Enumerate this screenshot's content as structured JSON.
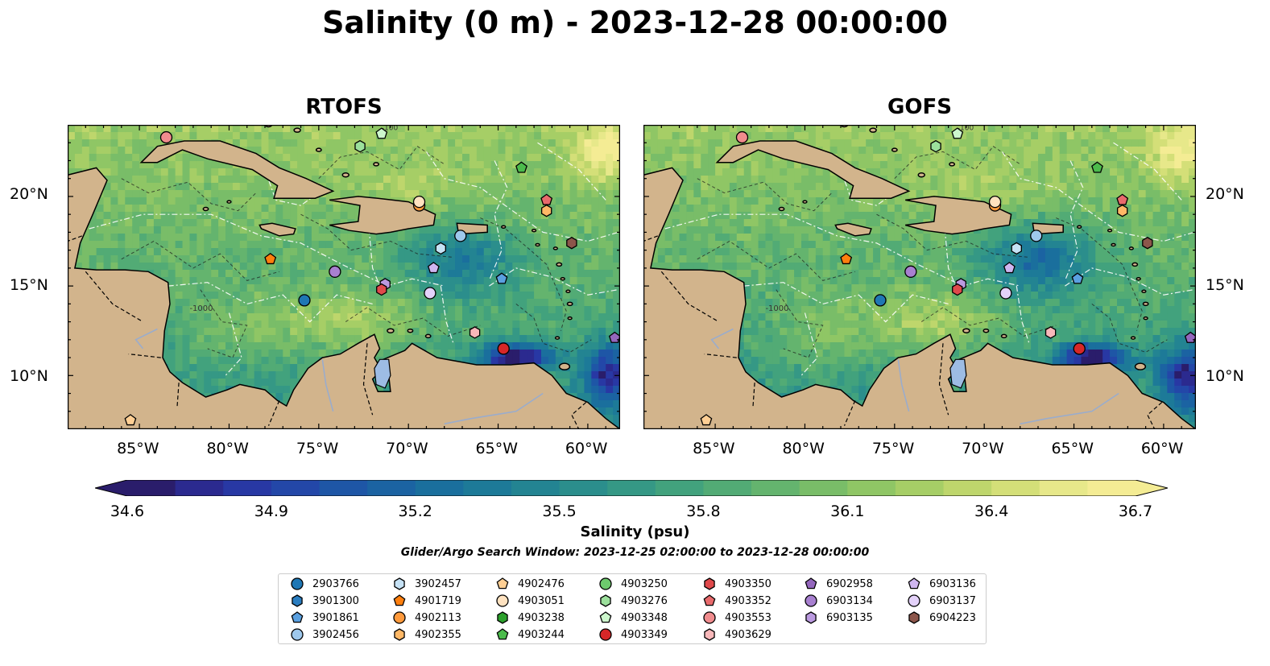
{
  "title": "Salinity (0 m) - 2023-12-28 00:00:00",
  "panels": [
    {
      "title": "RTOFS"
    },
    {
      "title": "GOFS"
    }
  ],
  "lon_ticks": [
    "85°W",
    "80°W",
    "75°W",
    "70°W",
    "65°W",
    "60°W"
  ],
  "lat_ticks": [
    "20°N",
    "15°N",
    "10°N"
  ],
  "colorbar": {
    "ticks": [
      "34.6",
      "34.9",
      "35.2",
      "35.5",
      "35.8",
      "36.1",
      "36.4",
      "36.7"
    ],
    "label": "Salinity (psu)",
    "colors": [
      "#2a1d6b",
      "#2b2a8f",
      "#2838a4",
      "#2347a8",
      "#1e56a6",
      "#1b63a2",
      "#1a6f9d",
      "#1d7a98",
      "#238492",
      "#2b8e8c",
      "#359885",
      "#42a27d",
      "#52ab75",
      "#64b46e",
      "#79bd68",
      "#8fc665",
      "#a6ce66",
      "#bed66c",
      "#d4df78",
      "#e7e88a",
      "#f4ec94"
    ]
  },
  "search_window": "Glider/Argo Search Window: 2023-12-25 02:00:00 to 2023-12-28 00:00:00",
  "contour_labels": {
    "shallow": "-100",
    "deep": "-1000"
  },
  "legend": {
    "columns": [
      [
        {
          "id": "2903766",
          "marker": "circle",
          "color": "#1f77b4"
        },
        {
          "id": "3901300",
          "marker": "hexagon",
          "color": "#2a7dc0"
        },
        {
          "id": "3901861",
          "marker": "pentagon",
          "color": "#5aa0e0"
        },
        {
          "id": "3902456",
          "marker": "circle",
          "color": "#9ec8ec"
        }
      ],
      [
        {
          "id": "3902457",
          "marker": "hexagon",
          "color": "#c6e2f5"
        },
        {
          "id": "4901719",
          "marker": "pentagon",
          "color": "#ff7f0e"
        },
        {
          "id": "4902113",
          "marker": "circle",
          "color": "#ff9a3c"
        },
        {
          "id": "4902355",
          "marker": "hexagon",
          "color": "#ffb866"
        }
      ],
      [
        {
          "id": "4902476",
          "marker": "pentagon",
          "color": "#ffcf94"
        },
        {
          "id": "4903051",
          "marker": "circle",
          "color": "#ffe2c0"
        },
        {
          "id": "4903238",
          "marker": "hexagon",
          "color": "#2ca02c"
        },
        {
          "id": "4903244",
          "marker": "pentagon",
          "color": "#4cbb4c"
        }
      ],
      [
        {
          "id": "4903250",
          "marker": "circle",
          "color": "#6dc96d"
        },
        {
          "id": "4903276",
          "marker": "hexagon",
          "color": "#9ce09c"
        },
        {
          "id": "4903348",
          "marker": "pentagon",
          "color": "#cdf7cd"
        },
        {
          "id": "4903349",
          "marker": "circle",
          "color": "#d62728"
        }
      ],
      [
        {
          "id": "4903350",
          "marker": "hexagon",
          "color": "#e0494b"
        },
        {
          "id": "4903352",
          "marker": "pentagon",
          "color": "#e86a6c"
        },
        {
          "id": "4903553",
          "marker": "circle",
          "color": "#f08c8e"
        },
        {
          "id": "4903629",
          "marker": "hexagon",
          "color": "#f8b8ba"
        }
      ],
      [
        {
          "id": "6902958",
          "marker": "pentagon",
          "color": "#9467bd"
        },
        {
          "id": "6903134",
          "marker": "circle",
          "color": "#a880d0"
        },
        {
          "id": "6903135",
          "marker": "hexagon",
          "color": "#bb9ae0"
        }
      ],
      [
        {
          "id": "6903136",
          "marker": "pentagon",
          "color": "#cfb6f0"
        },
        {
          "id": "6903137",
          "marker": "circle",
          "color": "#e4d2fa"
        },
        {
          "id": "6904223",
          "marker": "hexagon",
          "color": "#8c564b"
        }
      ]
    ]
  },
  "floats": [
    {
      "id": "4903553",
      "lon": -83.5,
      "lat": 23.3,
      "marker": "circle",
      "color": "#f08c8e"
    },
    {
      "id": "4903348",
      "lon": -71.5,
      "lat": 23.5,
      "marker": "pentagon",
      "color": "#cdf7cd"
    },
    {
      "id": "4903276",
      "lon": -72.7,
      "lat": 22.8,
      "marker": "hexagon",
      "color": "#9ce09c"
    },
    {
      "id": "4903244",
      "lon": -63.7,
      "lat": 21.6,
      "marker": "pentagon",
      "color": "#4cbb4c"
    },
    {
      "id": "4903352",
      "lon": -62.3,
      "lat": 19.8,
      "marker": "pentagon",
      "color": "#e86a6c"
    },
    {
      "id": "4902355",
      "lon": -62.3,
      "lat": 19.2,
      "marker": "hexagon",
      "color": "#ffb866"
    },
    {
      "id": "4902113",
      "lon": -69.4,
      "lat": 19.5,
      "marker": "circle",
      "color": "#ff9a3c"
    },
    {
      "id": "4903051",
      "lon": -69.4,
      "lat": 19.7,
      "marker": "circle",
      "color": "#ffe2c0"
    },
    {
      "id": "6904223",
      "lon": -60.9,
      "lat": 17.4,
      "marker": "hexagon",
      "color": "#8c564b"
    },
    {
      "id": "3902456",
      "lon": -67.1,
      "lat": 17.8,
      "marker": "circle",
      "color": "#9ec8ec"
    },
    {
      "id": "3902457",
      "lon": -68.2,
      "lat": 17.1,
      "marker": "hexagon",
      "color": "#c6e2f5"
    },
    {
      "id": "4901719",
      "lon": -77.7,
      "lat": 16.5,
      "marker": "pentagon",
      "color": "#ff7f0e"
    },
    {
      "id": "6903134",
      "lon": -74.1,
      "lat": 15.8,
      "marker": "circle",
      "color": "#a880d0"
    },
    {
      "id": "6903136",
      "lon": -68.6,
      "lat": 16.0,
      "marker": "pentagon",
      "color": "#cfb6f0"
    },
    {
      "id": "3901861",
      "lon": -64.8,
      "lat": 15.4,
      "marker": "pentagon",
      "color": "#5aa0e0"
    },
    {
      "id": "6903135",
      "lon": -71.3,
      "lat": 15.1,
      "marker": "hexagon",
      "color": "#bb9ae0"
    },
    {
      "id": "4903350",
      "lon": -71.5,
      "lat": 14.8,
      "marker": "hexagon",
      "color": "#e0494b"
    },
    {
      "id": "6903137",
      "lon": -68.8,
      "lat": 14.6,
      "marker": "circle",
      "color": "#e4d2fa"
    },
    {
      "id": "2903766",
      "lon": -75.8,
      "lat": 14.2,
      "marker": "circle",
      "color": "#1f77b4"
    },
    {
      "id": "4903629",
      "lon": -66.3,
      "lat": 12.4,
      "marker": "hexagon",
      "color": "#f8b8ba"
    },
    {
      "id": "4903349",
      "lon": -64.7,
      "lat": 11.5,
      "marker": "circle",
      "color": "#d62728"
    },
    {
      "id": "6902958",
      "lon": -58.5,
      "lat": 12.1,
      "marker": "pentagon",
      "color": "#9467bd"
    },
    {
      "id": "4902476",
      "lon": -85.5,
      "lat": 7.5,
      "marker": "pentagon",
      "color": "#ffcf94"
    }
  ]
}
